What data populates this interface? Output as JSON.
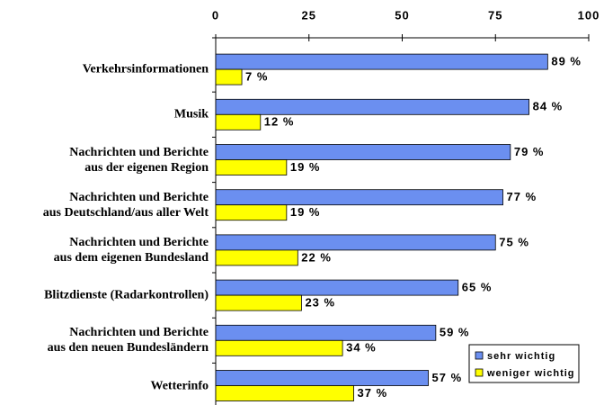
{
  "chart_data": {
    "type": "bar",
    "orientation": "horizontal",
    "categories": [
      "Verkehrsinformationen",
      "Musik",
      "Nachrichten und Berichte\naus der eigenen Region",
      "Nachrichten und Berichte\naus Deutschland/aus aller Welt",
      "Nachrichten und Berichte\naus dem eigenen Bundesland",
      "Blitzdienste (Radarkontrollen)",
      "Nachrichten und Berichte\naus den neuen Bundesländern",
      "Wetterinfo"
    ],
    "series": [
      {
        "name": "sehr wichtig",
        "color": "#6b8ff0",
        "values": [
          89,
          84,
          79,
          77,
          75,
          65,
          59,
          57
        ],
        "value_labels": [
          "89 %",
          "84 %",
          "79 %",
          "77 %",
          "75 %",
          "65 %",
          "59 %",
          "57 %"
        ]
      },
      {
        "name": "weniger wichtig",
        "color": "#ffff00",
        "values": [
          7,
          12,
          19,
          19,
          22,
          23,
          34,
          37
        ],
        "value_labels": [
          "7 %",
          "12 %",
          "19 %",
          "19 %",
          "22 %",
          "23 %",
          "34 %",
          "37 %"
        ]
      }
    ],
    "xlim": [
      0,
      100
    ],
    "xticks": [
      0,
      25,
      50,
      75,
      100
    ],
    "legend": "lower right"
  }
}
